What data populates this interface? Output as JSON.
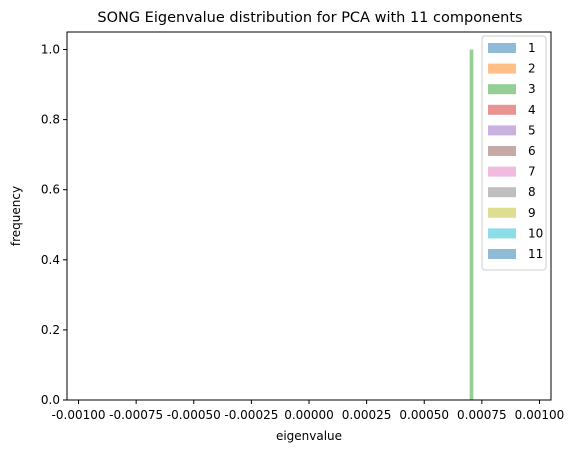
{
  "chart_data": {
    "type": "bar",
    "title": "SONG Eigenvalue distribution for PCA with 11 components",
    "xlabel": "eigenvalue",
    "ylabel": "frequency",
    "xlim": [
      -0.00105,
      0.00105
    ],
    "ylim": [
      0.0,
      1.05
    ],
    "xticks": [
      -0.001,
      -0.00075,
      -0.0005,
      -0.00025,
      0.0,
      0.00025,
      0.0005,
      0.00075,
      0.001
    ],
    "xtick_labels": [
      "-0.00100",
      "-0.00075",
      "-0.00050",
      "-0.00025",
      "0.00000",
      "0.00025",
      "0.00050",
      "0.00075",
      "0.00100"
    ],
    "yticks": [
      0.0,
      0.2,
      0.4,
      0.6,
      0.8,
      1.0
    ],
    "ytick_labels": [
      "0.0",
      "0.2",
      "0.4",
      "0.6",
      "0.8",
      "1.0"
    ],
    "grid": false,
    "legend_position": "top-right",
    "bars": [
      {
        "series": "3",
        "x_start": 0.000697,
        "x_end": 0.000713,
        "value": 1.0
      }
    ],
    "series": [
      {
        "name": "1",
        "color": "#1f77b4"
      },
      {
        "name": "2",
        "color": "#ff7f0e"
      },
      {
        "name": "3",
        "color": "#2ca02c"
      },
      {
        "name": "4",
        "color": "#d62728"
      },
      {
        "name": "5",
        "color": "#9467bd"
      },
      {
        "name": "6",
        "color": "#8c564b"
      },
      {
        "name": "7",
        "color": "#e377c2"
      },
      {
        "name": "8",
        "color": "#7f7f7f"
      },
      {
        "name": "9",
        "color": "#bcbd22"
      },
      {
        "name": "10",
        "color": "#17becf"
      },
      {
        "name": "11",
        "color": "#1f77b4"
      }
    ],
    "alpha": 0.5
  }
}
